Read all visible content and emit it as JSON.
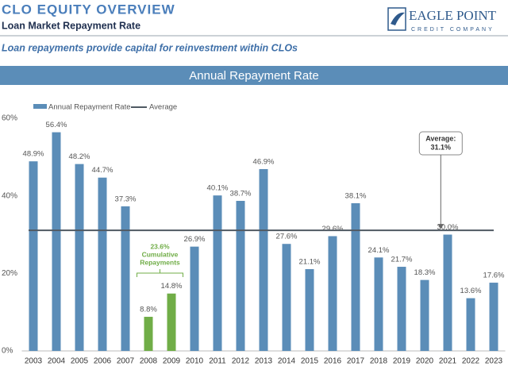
{
  "header": {
    "title": "CLO EQUITY OVERVIEW",
    "subtitle": "Loan Market Repayment Rate",
    "tagline": "Loan repayments provide capital for reinvestment within CLOs",
    "logo_name": "EAGLE POINT",
    "logo_sub": "CREDIT COMPANY"
  },
  "chart_data": {
    "type": "bar",
    "title": "Annual Repayment Rate",
    "categories": [
      "2003",
      "2004",
      "2005",
      "2006",
      "2007",
      "2008",
      "2009",
      "2010",
      "2011",
      "2012",
      "2013",
      "2014",
      "2015",
      "2016",
      "2017",
      "2018",
      "2019",
      "2020",
      "2021",
      "2022",
      "2023"
    ],
    "series": [
      {
        "name": "Annual Repayment Rate",
        "color": "#5b8db8",
        "colors": [
          "#5b8db8",
          "#5b8db8",
          "#5b8db8",
          "#5b8db8",
          "#5b8db8",
          "#70ad47",
          "#70ad47",
          "#5b8db8",
          "#5b8db8",
          "#5b8db8",
          "#5b8db8",
          "#5b8db8",
          "#5b8db8",
          "#5b8db8",
          "#5b8db8",
          "#5b8db8",
          "#5b8db8",
          "#5b8db8",
          "#5b8db8",
          "#5b8db8",
          "#5b8db8"
        ],
        "values": [
          48.9,
          56.4,
          48.2,
          44.7,
          37.3,
          8.8,
          14.8,
          26.9,
          40.1,
          38.7,
          46.9,
          27.6,
          21.1,
          29.6,
          38.1,
          24.1,
          21.7,
          18.3,
          30.0,
          13.6,
          17.6
        ],
        "value_labels": [
          "48.9%",
          "56.4%",
          "48.2%",
          "44.7%",
          "37.3%",
          "8.8%",
          "14.8%",
          "26.9%",
          "40.1%",
          "38.7%",
          "46.9%",
          "27.6%",
          "21.1%",
          "29.6%",
          "38.1%",
          "24.1%",
          "21.7%",
          "18.3%",
          "30.0%",
          "13.6%",
          "17.6%"
        ]
      }
    ],
    "average": {
      "name": "Average",
      "color": "#505a63",
      "value": 31.1,
      "caption": "Average:",
      "value_label": "31.1%"
    },
    "annotation": {
      "color": "#70ad47",
      "lines": [
        "23.6%",
        "Cumulative",
        "Repayments"
      ]
    },
    "ylim": [
      0,
      60
    ],
    "yticks": [
      {
        "value": 0,
        "label": "0%"
      },
      {
        "value": 20,
        "label": "20%"
      },
      {
        "value": 40,
        "label": "40%"
      },
      {
        "value": 60,
        "label": "60%"
      }
    ]
  }
}
